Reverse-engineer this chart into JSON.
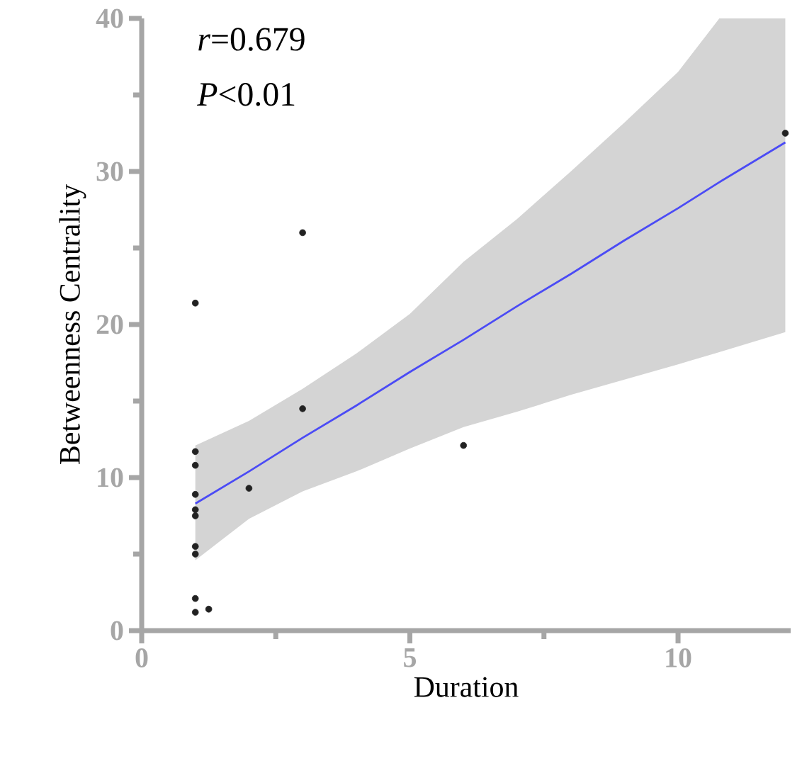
{
  "chart_data": {
    "type": "scatter",
    "xlabel": "Duration",
    "ylabel": "Betweenness Centrality",
    "annotations": [
      "*r*=0.679",
      "*P*<0.01"
    ],
    "xlim": [
      0,
      12.1
    ],
    "ylim": [
      0,
      40
    ],
    "xticks": [
      0,
      {
        "value": 2.5,
        "label": null
      },
      5,
      {
        "value": 7.5,
        "label": null
      },
      10
    ],
    "yticks": [
      0,
      {
        "value": 5,
        "label": null
      },
      10,
      {
        "value": 15,
        "label": null
      },
      20,
      {
        "value": 25,
        "label": null
      },
      30,
      {
        "value": 35,
        "label": null
      },
      40
    ],
    "grid": false,
    "marker": "circle",
    "series": [
      {
        "color": "#222222",
        "x": [
          1,
          1,
          1,
          1,
          1,
          1,
          1,
          1,
          1,
          1,
          1.25,
          2,
          3,
          3,
          6,
          12
        ],
        "values": [
          21.4,
          11.7,
          10.8,
          8.9,
          7.9,
          7.5,
          5.5,
          5.0,
          2.1,
          1.2,
          1.4,
          9.3,
          26.0,
          14.5,
          12.1,
          32.5
        ]
      },
      {
        "type": "line",
        "color": "#4b4bf5",
        "marker": "none",
        "line_style": "solid",
        "x": [
          1,
          2,
          3,
          4,
          5,
          6,
          7,
          8,
          9,
          10,
          10.77,
          12
        ],
        "values": [
          8.3,
          10.4,
          12.6,
          14.7,
          16.9,
          19.0,
          21.2,
          23.3,
          25.5,
          27.6,
          29.3,
          31.9
        ],
        "lower": [
          4.6,
          7.3,
          9.1,
          10.4,
          11.9,
          13.3,
          14.3,
          15.4,
          16.4,
          17.4,
          18.2,
          19.5
        ],
        "upper": [
          12.1,
          13.7,
          15.8,
          18.1,
          20.7,
          24.1,
          26.9,
          30.0,
          33.2,
          36.5,
          40,
          40
        ]
      }
    ]
  }
}
